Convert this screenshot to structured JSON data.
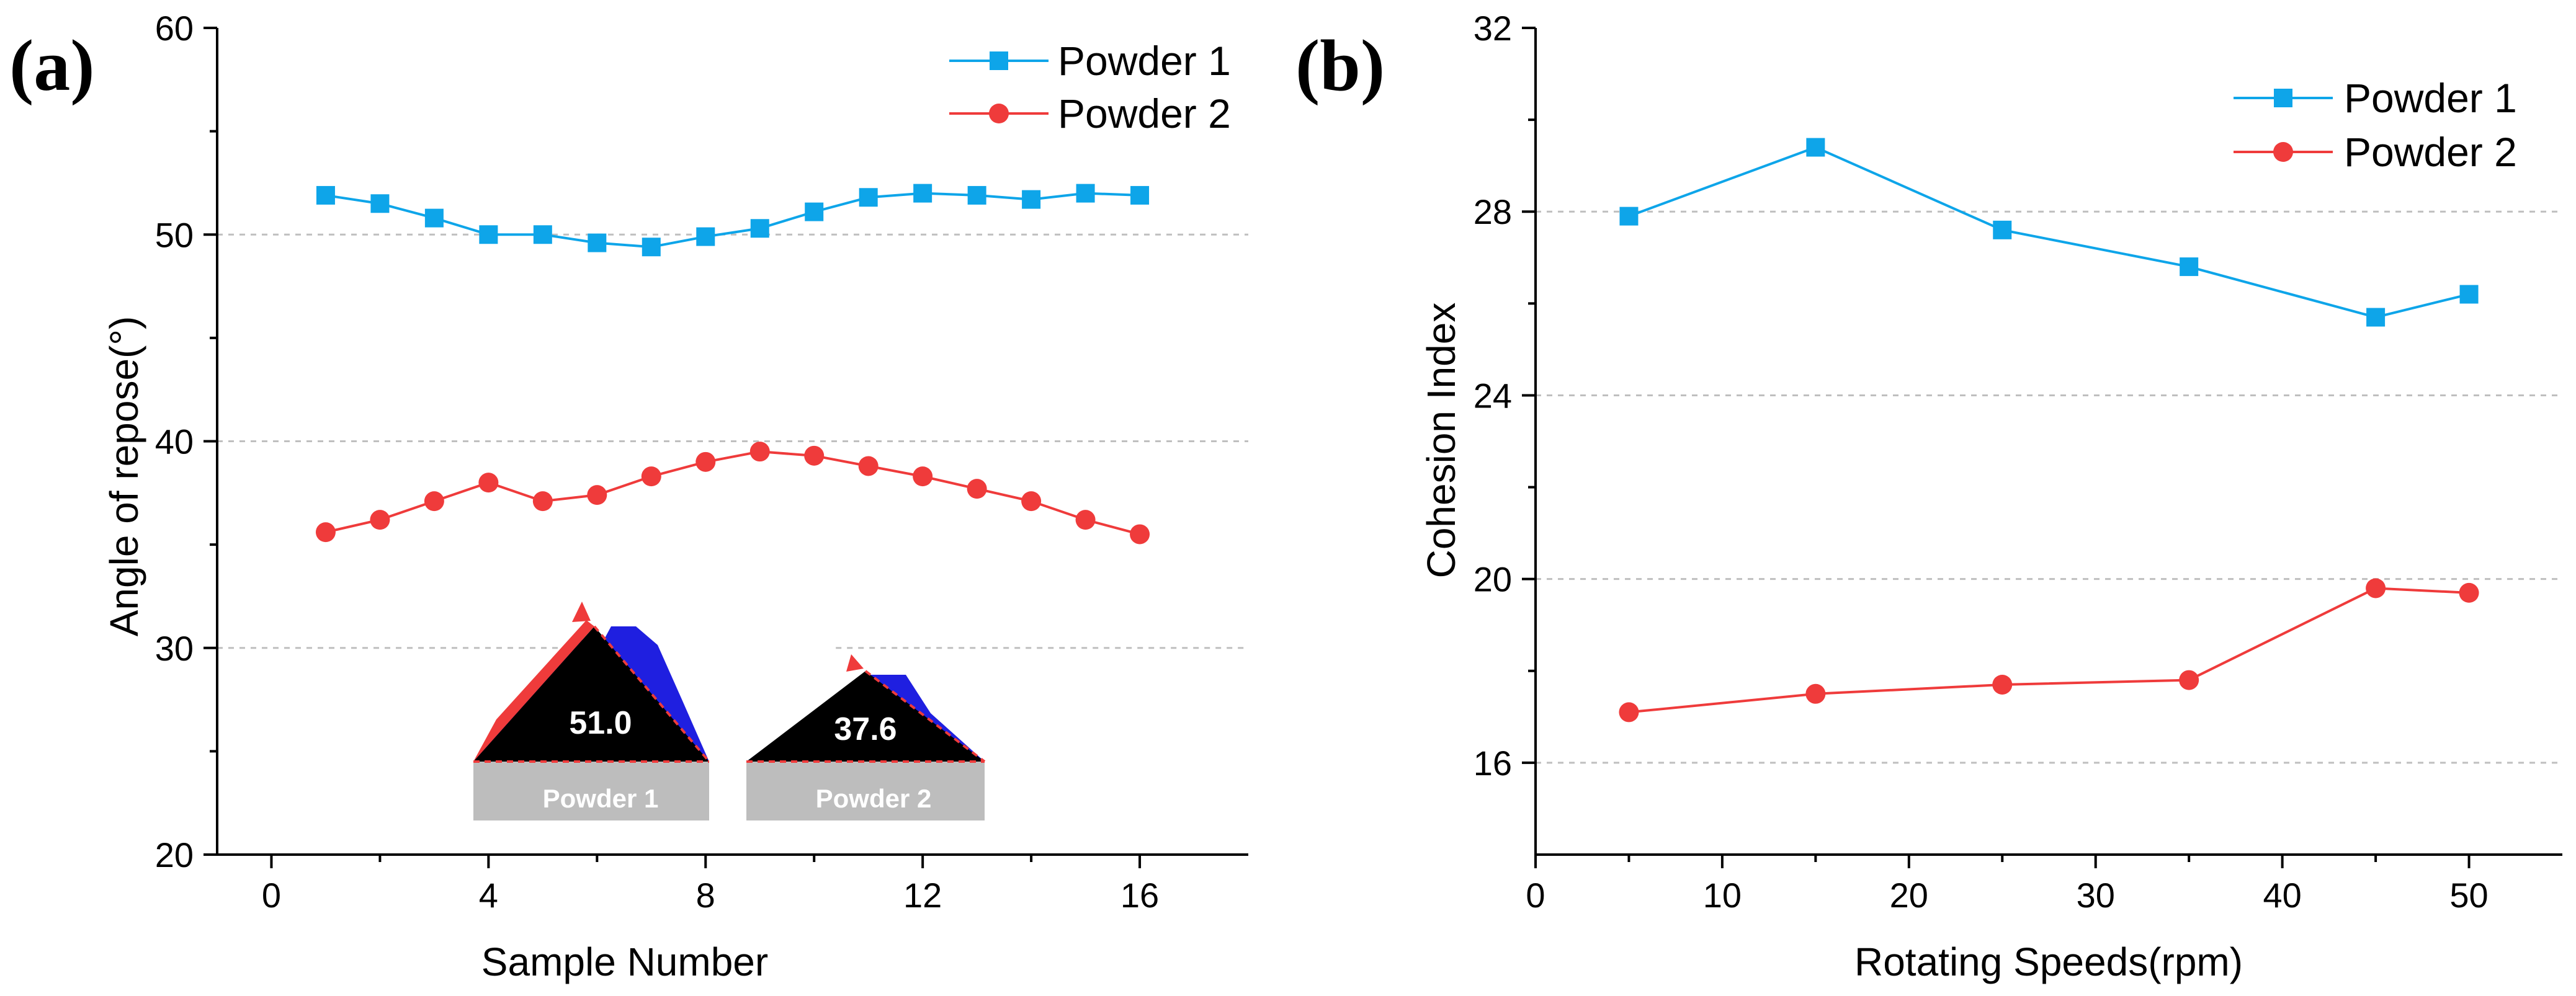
{
  "colors": {
    "powder1": "#0ea5e9",
    "powder2": "#ef3b3b",
    "grid": "#bfbfbf",
    "inset_pile": "#000000",
    "inset_shadow": "#1f1fe0",
    "inset_base": "#bdbdbd"
  },
  "chart_data": [
    {
      "panel": "(a)",
      "type": "line",
      "title": "",
      "xlabel": "Sample Number",
      "ylabel": "Angle of repose(°)",
      "xlim": [
        -1,
        18
      ],
      "ylim": [
        20,
        60
      ],
      "xticks": [
        0,
        4,
        8,
        12,
        16
      ],
      "yticks": [
        20,
        30,
        40,
        50,
        60
      ],
      "gridlines_y": [
        30,
        40,
        50
      ],
      "legend": "top-right",
      "series": [
        {
          "name": "Powder 1",
          "marker": "square",
          "x": [
            1,
            2,
            3,
            4,
            5,
            6,
            7,
            8,
            9,
            10,
            11,
            12,
            13,
            14,
            15,
            16
          ],
          "values": [
            51.9,
            51.5,
            50.8,
            50.0,
            50.0,
            49.6,
            49.4,
            49.9,
            50.3,
            51.1,
            51.8,
            52.0,
            51.9,
            51.7,
            52.0,
            51.9
          ]
        },
        {
          "name": "Powder 2",
          "marker": "circle",
          "x": [
            1,
            2,
            3,
            4,
            5,
            6,
            7,
            8,
            9,
            10,
            11,
            12,
            13,
            14,
            15,
            16
          ],
          "values": [
            35.6,
            36.2,
            37.1,
            38.0,
            37.1,
            37.4,
            38.3,
            39.0,
            39.5,
            39.3,
            38.8,
            38.3,
            37.7,
            37.1,
            36.2,
            35.5
          ]
        }
      ],
      "insets": [
        {
          "value_label": "51.0",
          "base_label": "Powder 1",
          "angle_deg": 51.0
        },
        {
          "value_label": "37.6",
          "base_label": "Powder 2",
          "angle_deg": 37.6
        }
      ]
    },
    {
      "panel": "(b)",
      "type": "line",
      "title": "",
      "xlabel": "Rotating Speeds(rpm)",
      "ylabel": "Cohesion Index",
      "xlim": [
        0,
        55
      ],
      "ylim": [
        14,
        32
      ],
      "xticks": [
        0,
        10,
        20,
        30,
        40,
        50
      ],
      "yticks": [
        16,
        20,
        24,
        28,
        32
      ],
      "gridlines_y": [
        16,
        20,
        24,
        28
      ],
      "legend": "top-right",
      "series": [
        {
          "name": "Powder 1",
          "marker": "square",
          "x": [
            5,
            15,
            25,
            35,
            45,
            50
          ],
          "values": [
            27.9,
            29.4,
            27.6,
            26.8,
            25.7,
            26.2
          ]
        },
        {
          "name": "Powder 2",
          "marker": "circle",
          "x": [
            5,
            15,
            25,
            35,
            45,
            50
          ],
          "values": [
            17.1,
            17.5,
            17.7,
            17.8,
            19.8,
            19.7
          ]
        }
      ]
    }
  ]
}
